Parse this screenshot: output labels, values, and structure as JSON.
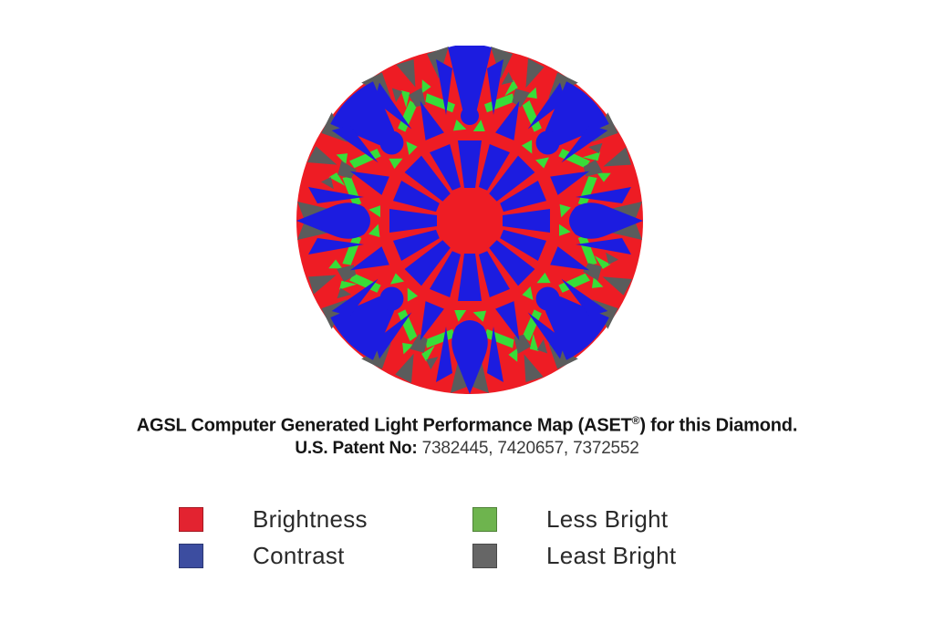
{
  "caption": {
    "line1_pre": "AGSL Computer Generated Light Performance Map (ASET",
    "line1_sup": "®",
    "line1_post": ") for this Diamond.",
    "line2_label": "U.S. Patent No:",
    "line2_numbers": " 7382445, 7420657, 7372552"
  },
  "map": {
    "description": "ASET color-coded light performance map of a round brilliant diamond",
    "colors": {
      "brightness_red": "#ee1c24",
      "contrast_blue": "#1c1ce0",
      "less_bright_green": "#38dd38",
      "least_bright_gray": "#5a5c5c"
    }
  },
  "legend": {
    "items": [
      {
        "label": "Brightness",
        "color": "#e32330"
      },
      {
        "label": "Contrast",
        "color": "#3c4da0"
      },
      {
        "label": "Less Bright",
        "color": "#6eb44e"
      },
      {
        "label": "Least Bright",
        "color": "#666666"
      }
    ]
  }
}
